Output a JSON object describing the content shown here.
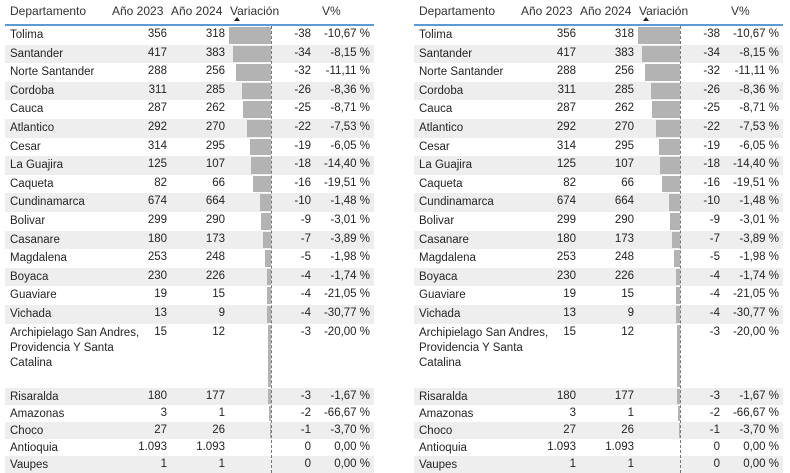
{
  "headers": {
    "departamento": "Departamento",
    "y2023": "Año 2023",
    "y2024": "Año 2024",
    "variacion": "Variación",
    "vpct": "V%"
  },
  "sort": {
    "column": "Variación",
    "direction": "ascending"
  },
  "bar_color": "#b3b3b3",
  "accent": "#5b9bd5",
  "rows": [
    {
      "dep": "Tolima",
      "y2023": "356",
      "y2024": "318",
      "var": -38,
      "var_label": "-38",
      "vpct": "-10,67 %"
    },
    {
      "dep": "Santander",
      "y2023": "417",
      "y2024": "383",
      "var": -34,
      "var_label": "-34",
      "vpct": "-8,15 %"
    },
    {
      "dep": "Norte Santander",
      "y2023": "288",
      "y2024": "256",
      "var": -32,
      "var_label": "-32",
      "vpct": "-11,11 %"
    },
    {
      "dep": "Cordoba",
      "y2023": "311",
      "y2024": "285",
      "var": -26,
      "var_label": "-26",
      "vpct": "-8,36 %"
    },
    {
      "dep": "Cauca",
      "y2023": "287",
      "y2024": "262",
      "var": -25,
      "var_label": "-25",
      "vpct": "-8,71 %"
    },
    {
      "dep": "Atlantico",
      "y2023": "292",
      "y2024": "270",
      "var": -22,
      "var_label": "-22",
      "vpct": "-7,53 %"
    },
    {
      "dep": "Cesar",
      "y2023": "314",
      "y2024": "295",
      "var": -19,
      "var_label": "-19",
      "vpct": "-6,05 %"
    },
    {
      "dep": "La Guajira",
      "y2023": "125",
      "y2024": "107",
      "var": -18,
      "var_label": "-18",
      "vpct": "-14,40 %"
    },
    {
      "dep": "Caqueta",
      "y2023": "82",
      "y2024": "66",
      "var": -16,
      "var_label": "-16",
      "vpct": "-19,51 %"
    },
    {
      "dep": "Cundinamarca",
      "y2023": "674",
      "y2024": "664",
      "var": -10,
      "var_label": "-10",
      "vpct": "-1,48 %"
    },
    {
      "dep": "Bolivar",
      "y2023": "299",
      "y2024": "290",
      "var": -9,
      "var_label": "-9",
      "vpct": "-3,01 %"
    },
    {
      "dep": "Casanare",
      "y2023": "180",
      "y2024": "173",
      "var": -7,
      "var_label": "-7",
      "vpct": "-3,89 %"
    },
    {
      "dep": "Magdalena",
      "y2023": "253",
      "y2024": "248",
      "var": -5,
      "var_label": "-5",
      "vpct": "-1,98 %"
    },
    {
      "dep": "Boyaca",
      "y2023": "230",
      "y2024": "226",
      "var": -4,
      "var_label": "-4",
      "vpct": "-1,74 %"
    },
    {
      "dep": "Guaviare",
      "y2023": "19",
      "y2024": "15",
      "var": -4,
      "var_label": "-4",
      "vpct": "-21,05 %"
    },
    {
      "dep": "Vichada",
      "y2023": "13",
      "y2024": "9",
      "var": -4,
      "var_label": "-4",
      "vpct": "-30,77 %"
    },
    {
      "dep": "Archipielago San Andres, Providencia Y Santa Catalina",
      "y2023": "15",
      "y2024": "12",
      "var": -3,
      "var_label": "-3",
      "vpct": "-20,00 %"
    },
    {
      "dep": "Risaralda",
      "y2023": "180",
      "y2024": "177",
      "var": -3,
      "var_label": "-3",
      "vpct": "-1,67 %"
    },
    {
      "dep": "Amazonas",
      "y2023": "3",
      "y2024": "1",
      "var": -2,
      "var_label": "-2",
      "vpct": "-66,67 %"
    },
    {
      "dep": "Choco",
      "y2023": "27",
      "y2024": "26",
      "var": -1,
      "var_label": "-1",
      "vpct": "-3,70 %"
    },
    {
      "dep": "Antioquia",
      "y2023": "1.093",
      "y2024": "1.093",
      "var": 0,
      "var_label": "0",
      "vpct": "0,00 %"
    },
    {
      "dep": "Vaupes",
      "y2023": "1",
      "y2024": "1",
      "var": 0,
      "var_label": "0",
      "vpct": "0,00 %"
    }
  ]
}
